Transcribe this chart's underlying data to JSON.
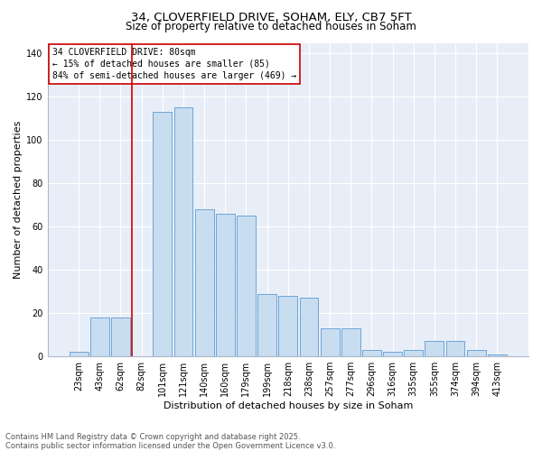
{
  "title_line1": "34, CLOVERFIELD DRIVE, SOHAM, ELY, CB7 5FT",
  "title_line2": "Size of property relative to detached houses in Soham",
  "xlabel": "Distribution of detached houses by size in Soham",
  "ylabel": "Number of detached properties",
  "footer_line1": "Contains HM Land Registry data © Crown copyright and database right 2025.",
  "footer_line2": "Contains public sector information licensed under the Open Government Licence v3.0.",
  "annotation_line1": "34 CLOVERFIELD DRIVE: 80sqm",
  "annotation_line2": "← 15% of detached houses are smaller (85)",
  "annotation_line3": "84% of semi-detached houses are larger (469) →",
  "bar_categories": [
    "23sqm",
    "43sqm",
    "62sqm",
    "82sqm",
    "101sqm",
    "121sqm",
    "140sqm",
    "160sqm",
    "179sqm",
    "199sqm",
    "218sqm",
    "238sqm",
    "257sqm",
    "277sqm",
    "296sqm",
    "316sqm",
    "335sqm",
    "355sqm",
    "374sqm",
    "394sqm",
    "413sqm"
  ],
  "bar_values": [
    2,
    18,
    18,
    0,
    113,
    115,
    68,
    66,
    65,
    29,
    28,
    27,
    13,
    13,
    3,
    2,
    3,
    7,
    7,
    3,
    1
  ],
  "bar_color": "#c9ddf0",
  "bar_edge_color": "#5b9bd5",
  "vline_color": "#cc0000",
  "annotation_box_edgecolor": "#cc0000",
  "plot_bg_color": "#e8eef7",
  "ylim": [
    0,
    145
  ],
  "yticks": [
    0,
    20,
    40,
    60,
    80,
    100,
    120,
    140
  ],
  "title1_fontsize": 9.5,
  "title2_fontsize": 8.5,
  "axis_label_fontsize": 8,
  "tick_fontsize": 7,
  "annotation_fontsize": 7,
  "footer_fontsize": 6
}
